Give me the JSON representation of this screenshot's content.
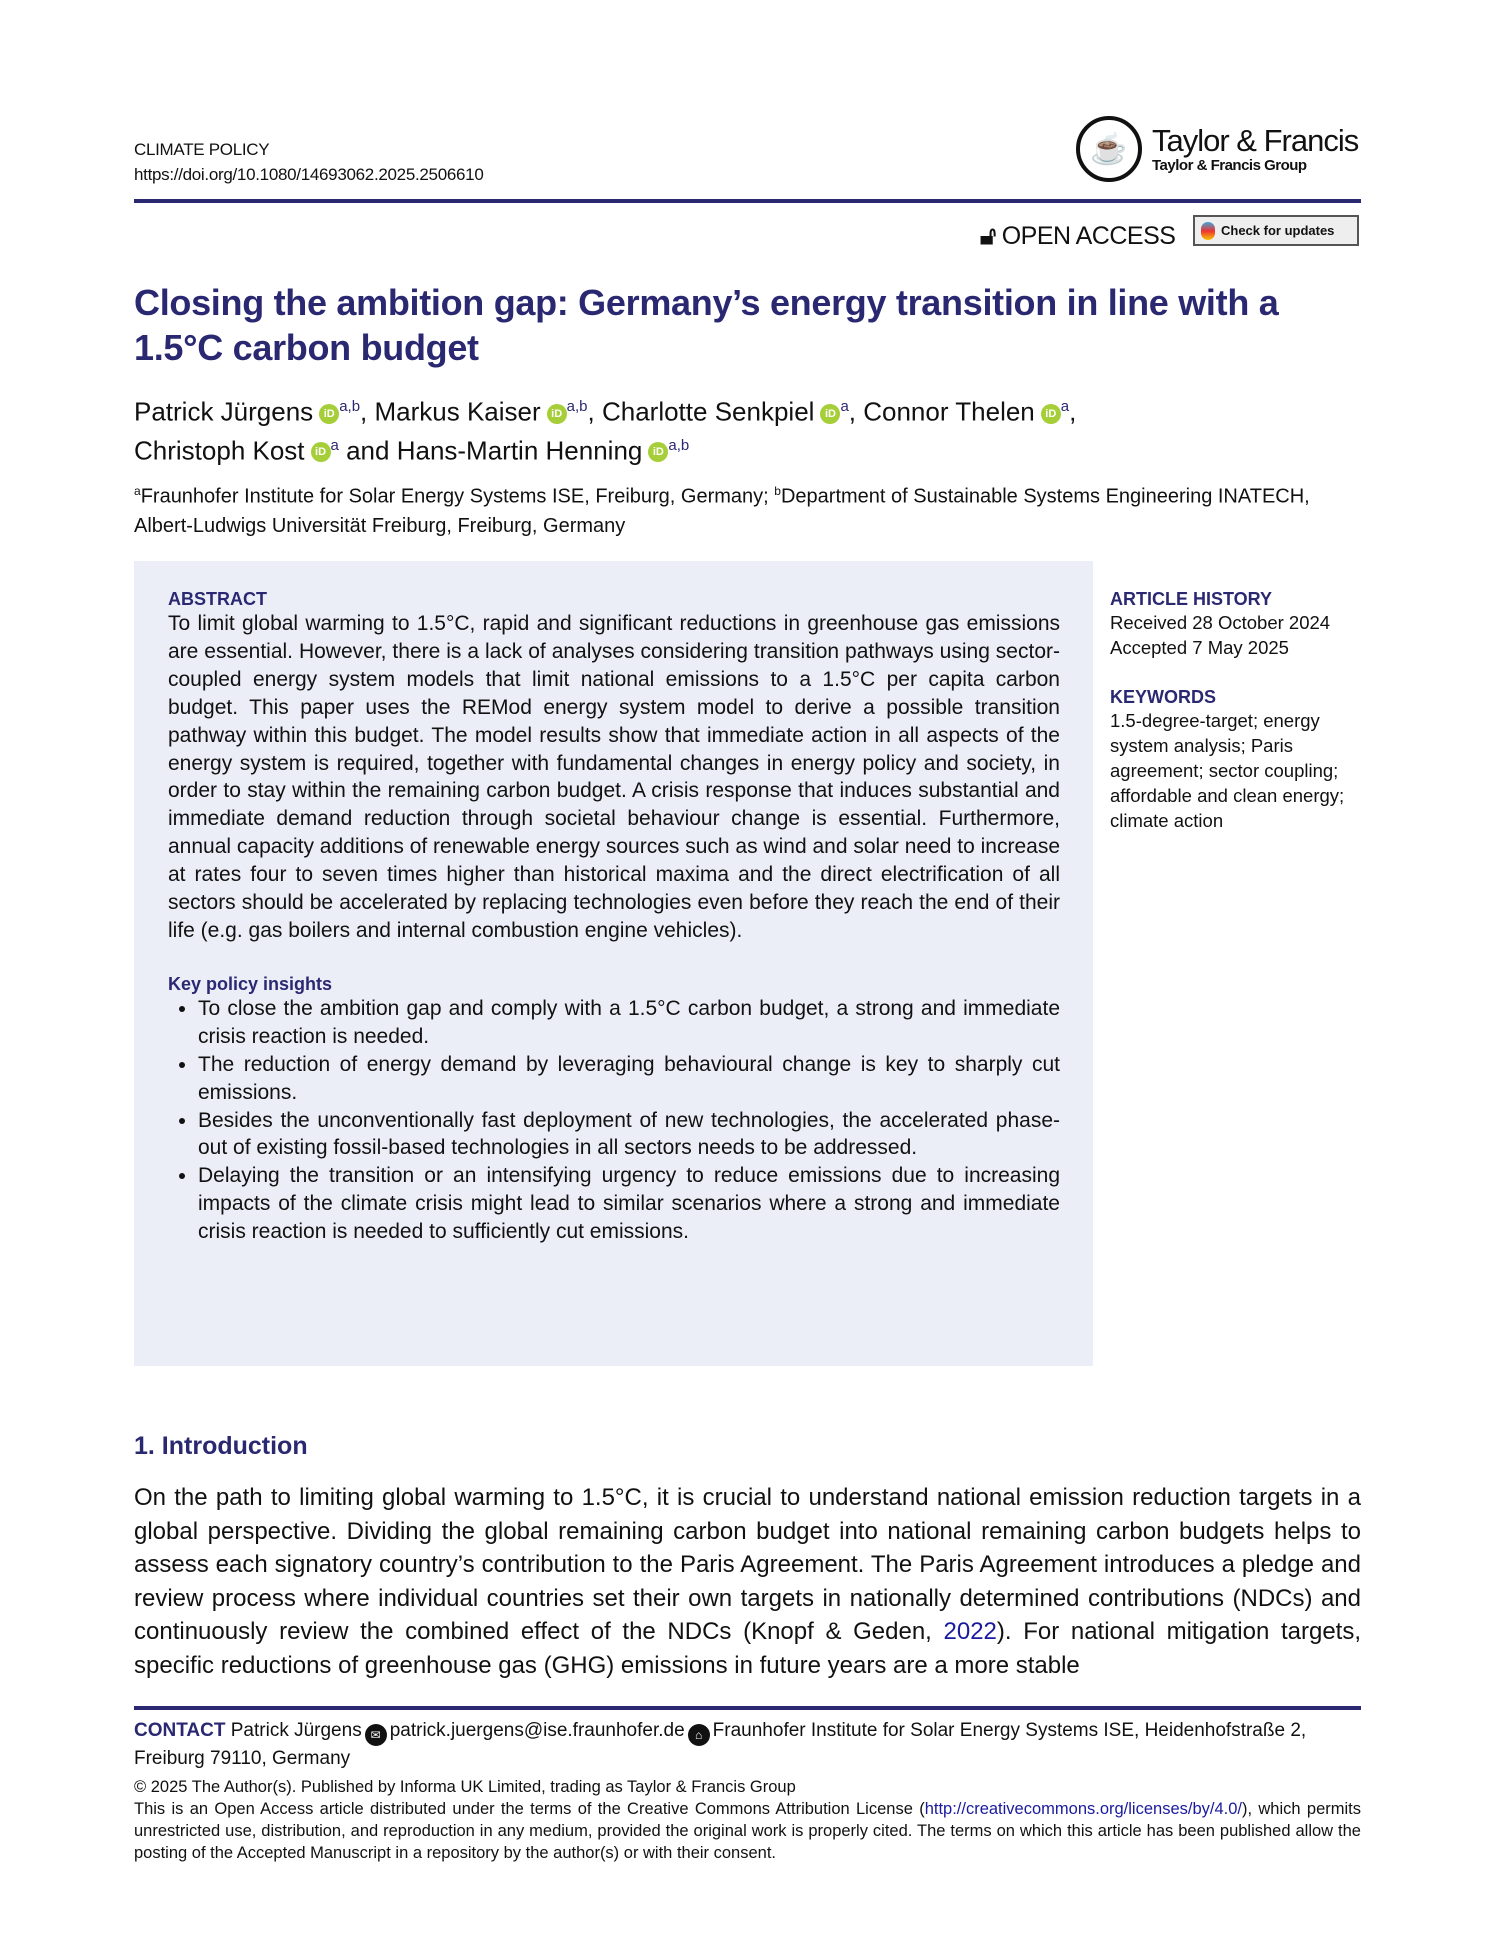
{
  "header": {
    "journal": "CLIMATE POLICY",
    "doi": "https://doi.org/10.1080/14693062.2025.2506610",
    "publisher": "Taylor & Francis",
    "publisher_group": "Taylor & Francis Group",
    "open_access": "OPEN ACCESS",
    "check_updates": "Check for updates"
  },
  "title_line1": "Closing the ambition gap: Germany’s energy transition in line with a",
  "title_line2": "1.5°C carbon budget",
  "authors": [
    {
      "name": "Patrick Jürgens",
      "aff": "a,b",
      "sep": ", "
    },
    {
      "name": "Markus Kaiser",
      "aff": "a,b",
      "sep": ", "
    },
    {
      "name": "Charlotte Senkpiel",
      "aff": "a",
      "sep": ", "
    },
    {
      "name": "Connor Thelen",
      "aff": "a",
      "sep": ","
    },
    {
      "name": "Christoph Kost",
      "aff": "a",
      "sep": " and "
    },
    {
      "name": "Hans-Martin Henning",
      "aff": "a,b",
      "sep": ""
    }
  ],
  "affiliations": {
    "a_mark": "a",
    "a": "Fraunhofer Institute for Solar Energy Systems ISE, Freiburg, Germany; ",
    "b_mark": "b",
    "b": "Department of Sustainable Systems Engineering INATECH, Albert-Ludwigs Universität Freiburg, Freiburg, Germany"
  },
  "abstract": {
    "heading": "ABSTRACT",
    "text": "To limit global warming to 1.5°C, rapid and significant reductions in greenhouse gas emissions are essential. However, there is a lack of analyses considering transition pathways using sector-coupled energy system models that limit national emissions to a 1.5°C per capita carbon budget. This paper uses the REMod energy system model to derive a possible transition pathway within this budget. The model results show that immediate action in all aspects of the energy system is required, together with fundamental changes in energy policy and society, in order to stay within the remaining carbon budget. A crisis response that induces substantial and immediate demand reduction through societal behaviour change is essential. Furthermore, annual capacity additions of renewable energy sources such as wind and solar need to increase at rates four to seven times higher than historical maxima and the direct electrification of all sectors should be accelerated by replacing technologies even before they reach the end of their life (e.g. gas boilers and internal combustion engine vehicles).",
    "insights_heading": "Key policy insights",
    "insights": [
      "To close the ambition gap and comply with a 1.5°C carbon budget, a strong and immediate crisis reaction is needed.",
      "The reduction of energy demand by leveraging behavioural change is key to sharply cut emissions.",
      "Besides the unconventionally fast deployment of new technologies, the accelerated phase-out of existing fossil-based technologies in all sectors needs to be addressed.",
      "Delaying the transition or an intensifying urgency to reduce emissions due to increasing impacts of the climate crisis might lead to similar scenarios where a strong and immediate crisis reaction is needed to sufficiently cut emissions."
    ]
  },
  "sidebar": {
    "history_heading": "ARTICLE HISTORY",
    "received": "Received 28 October 2024",
    "accepted": "Accepted 7 May 2025",
    "keywords_heading": "KEYWORDS",
    "keywords": "1.5-degree-target; energy system analysis; Paris agreement; sector coupling; affordable and clean energy; climate action"
  },
  "intro": {
    "heading": "1. Introduction",
    "text_before": "On the path to limiting global warming to 1.5°C, it is crucial to understand national emission reduction targets in a global perspective. Dividing the global remaining carbon budget into national remaining carbon budgets helps to assess each signatory country’s contribution to the Paris Agreement. The Paris Agreement introduces a pledge and review process where individual countries set their own targets in nationally determined contributions (NDCs) and continuously review the combined effect of the NDCs (Knopf & Geden, ",
    "cite_year": "2022",
    "text_after": "). For national mitigation targets, specific reductions of greenhouse gas (GHG) emissions in future years are a more stable"
  },
  "footer": {
    "contact_label": "CONTACT",
    "contact_name": "Patrick Jürgens",
    "email": "patrick.juergens@ise.fraunhofer.de",
    "address": "Fraunhofer Institute for Solar Energy Systems ISE, Heidenhofstraße 2, Freiburg 79110, Germany",
    "copyright": "© 2025 The Author(s). Published by Informa UK Limited, trading as Taylor & Francis Group",
    "license_before": "This is an Open Access article distributed under the terms of the Creative Commons Attribution License (",
    "license_link": "http://creativecommons.org/licenses/by/4.0/",
    "license_after": "), which permits unrestricted use, distribution, and reproduction in any medium, provided the original work is properly cited. The terms on which this article has been published allow the posting of the Accepted Manuscript in a repository by the author(s) or with their consent."
  },
  "colors": {
    "accent": "#2b2872",
    "abstract_bg": "#eceef7",
    "orcid": "#a6ce39"
  }
}
